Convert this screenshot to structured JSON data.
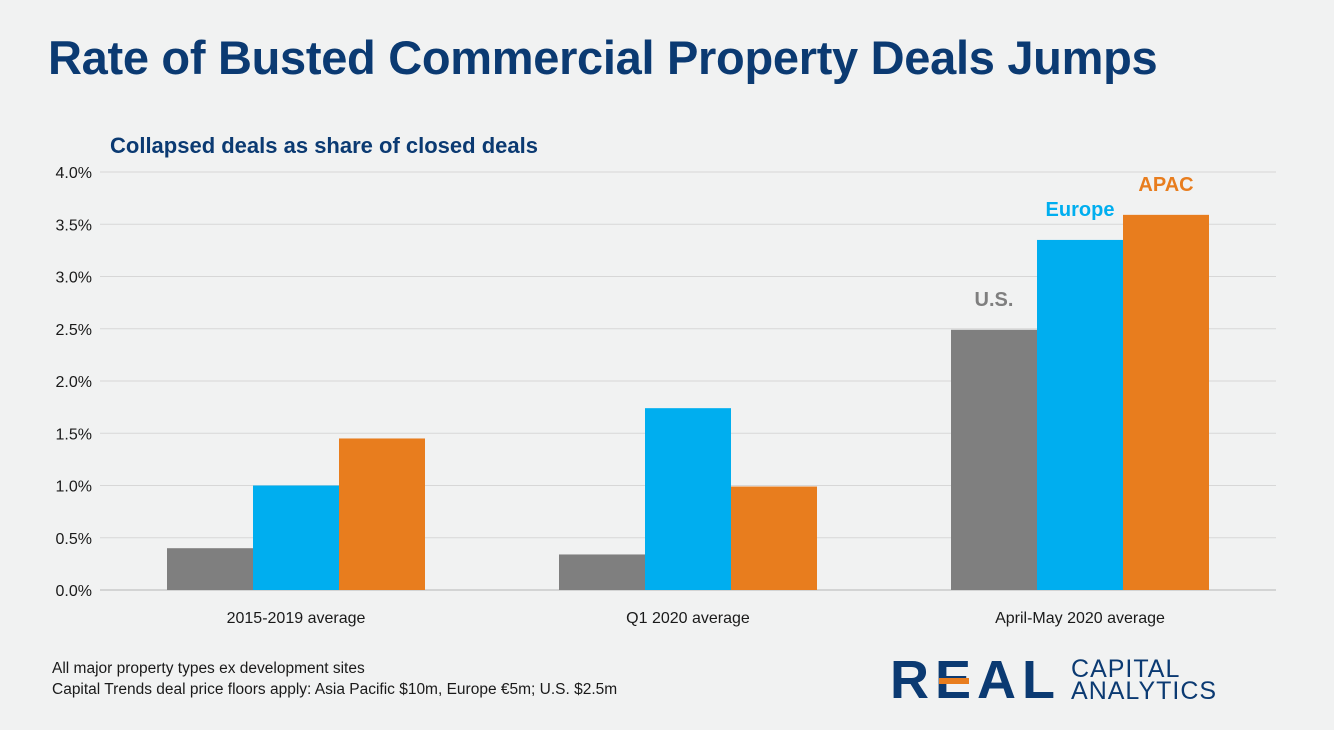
{
  "title": "Rate of Busted Commercial Property Deals Jumps",
  "notes": [
    "All major property types ex development sites",
    "Capital Trends deal price floors apply: Asia Pacific $10m, Europe €5m; U.S. $2.5m"
  ],
  "logo": {
    "text": "REAL",
    "line1": "CAPITAL",
    "line2": "ANALYTICS"
  },
  "chart_data": {
    "type": "bar",
    "title": "Rate of Busted Commercial Property Deals Jumps",
    "subtitle": "Collapsed deals as share of closed deals",
    "xlabel": "",
    "ylabel": "",
    "categories": [
      "2015-2019 average",
      "Q1 2020 average",
      "April-May 2020 average"
    ],
    "series": [
      {
        "name": "U.S.",
        "values": [
          0.4,
          0.34,
          2.49
        ],
        "color": "#7f7f7f"
      },
      {
        "name": "Europe",
        "values": [
          1.0,
          1.74,
          3.35
        ],
        "color": "#00aeef"
      },
      {
        "name": "APAC",
        "values": [
          1.45,
          0.99,
          3.59
        ],
        "color": "#e87d1e"
      }
    ],
    "ylim": [
      0,
      4.0
    ],
    "yticks": [
      "0.0%",
      "0.5%",
      "1.0%",
      "1.5%",
      "2.0%",
      "2.5%",
      "3.0%",
      "3.5%",
      "4.0%"
    ],
    "grid": true,
    "legend": "series names labeled above bars of last category"
  }
}
